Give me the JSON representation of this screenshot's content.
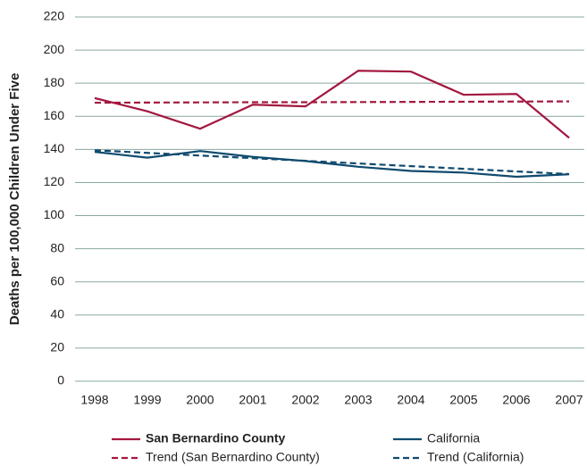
{
  "chart_data": {
    "type": "line",
    "y_label": "Deaths per 100,000 Children Under Five",
    "categories": [
      "1998",
      "1999",
      "2000",
      "2001",
      "2002",
      "2003",
      "2004",
      "2005",
      "2006",
      "2007"
    ],
    "series": [
      {
        "name": "San Bernardino County",
        "color": "#a3173f",
        "dashed": false,
        "values": [
          171,
          163,
          152.5,
          167,
          166,
          187.5,
          187,
          173,
          173.5,
          147
        ]
      },
      {
        "name": "California",
        "color": "#0f4a6e",
        "dashed": false,
        "values": [
          138.5,
          135,
          139,
          135.5,
          133,
          129.5,
          127,
          126,
          123.5,
          125
        ]
      },
      {
        "name": "Trend (San Bernardino County)",
        "color": "#a3173f",
        "dashed": true,
        "values": [
          168.2,
          168.3,
          168.4,
          168.5,
          168.5,
          168.6,
          168.7,
          168.8,
          168.9,
          169
        ]
      },
      {
        "name": "Trend (California)",
        "color": "#0f4a6e",
        "dashed": true,
        "values": [
          139.5,
          137.9,
          136.3,
          134.7,
          133.1,
          131.5,
          129.9,
          128.3,
          126.7,
          125.1
        ]
      }
    ],
    "ylim": [
      0,
      220
    ],
    "yticks": [
      0,
      20,
      40,
      60,
      80,
      100,
      120,
      140,
      160,
      180,
      200,
      220
    ],
    "grid": true
  }
}
